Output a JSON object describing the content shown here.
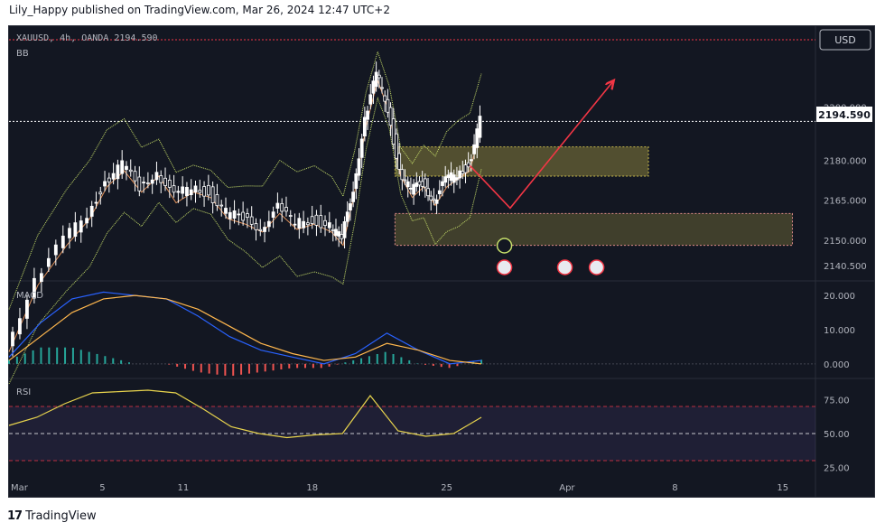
{
  "header": {
    "text": "Lily_Happy published on TradingView.com, Mar 26, 2024 12:47 UTC+2"
  },
  "footer": {
    "brand": "TradingView",
    "logo": "17"
  },
  "colors": {
    "background": "#131722",
    "price_line": "#ffffff",
    "bands": "#c8e06a",
    "macd_line": "#2962ff",
    "signal_line": "#ffb74d",
    "hist_up": "#26a69a",
    "hist_down": "#ef5350",
    "rsi_line": "#e8d44d",
    "rsi_band": "#7e57c2",
    "zone_supply": "#c8b84a",
    "zone_demand": "#e08a8a",
    "arrow": "#f23645"
  },
  "chart_data": [
    {
      "type": "candlestick",
      "pane": "price",
      "symbol_line": "XAUUSD, 4h, OANDA  2194.590",
      "indicator_label": "BB",
      "currency_button": "USD",
      "current_price": "2194.590",
      "y_ticks": [
        "2200.000",
        "2180.000",
        "2165.000",
        "2150.000",
        "2140.500"
      ],
      "y_tick_values": [
        2200,
        2180,
        2165,
        2150,
        2140.5
      ],
      "ylim": [
        2135,
        2230
      ],
      "x_ticks": [
        "Mar",
        "5",
        "11",
        "18",
        "25",
        "Apr",
        "8",
        "15"
      ],
      "price_path": [
        [
          0,
          2110
        ],
        [
          10,
          2135
        ],
        [
          20,
          2150
        ],
        [
          28,
          2160
        ],
        [
          34,
          2172
        ],
        [
          40,
          2178
        ],
        [
          46,
          2170
        ],
        [
          52,
          2176
        ],
        [
          58,
          2166
        ],
        [
          64,
          2170
        ],
        [
          70,
          2168
        ],
        [
          76,
          2160
        ],
        [
          82,
          2158
        ],
        [
          88,
          2155
        ],
        [
          94,
          2162
        ],
        [
          100,
          2156
        ],
        [
          106,
          2158
        ],
        [
          112,
          2155
        ],
        [
          116,
          2150
        ],
        [
          120,
          2170
        ],
        [
          124,
          2195
        ],
        [
          128,
          2212
        ],
        [
          132,
          2200
        ],
        [
          136,
          2176
        ],
        [
          140,
          2168
        ],
        [
          144,
          2172
        ],
        [
          148,
          2165
        ],
        [
          152,
          2172
        ],
        [
          156,
          2175
        ],
        [
          160,
          2178
        ],
        [
          164,
          2194.59
        ]
      ],
      "zones": [
        {
          "name": "upper-zone",
          "top": 2185,
          "bottom": 2174,
          "x_start": 134,
          "x_end": 222
        },
        {
          "name": "lower-zone",
          "top": 2160,
          "bottom": 2148,
          "x_start": 134,
          "x_end": 272
        }
      ],
      "projection": [
        [
          160,
          2178
        ],
        [
          174,
          2162
        ],
        [
          210,
          2210
        ]
      ]
    },
    {
      "type": "line",
      "pane": "macd",
      "indicator_label": "MACD",
      "y_ticks": [
        "20.000",
        "10.000",
        "0.000"
      ],
      "y_tick_values": [
        20,
        10,
        0
      ],
      "ylim": [
        -4,
        24
      ],
      "series": [
        {
          "values": [
            2,
            12,
            19,
            21,
            20,
            19,
            14,
            8,
            4,
            2,
            0,
            3,
            9,
            4,
            0,
            1
          ]
        },
        {
          "values": [
            1,
            8,
            15,
            19,
            20,
            19,
            16,
            11,
            6,
            3,
            1,
            2,
            6,
            4,
            1,
            0
          ]
        }
      ]
    },
    {
      "type": "line",
      "pane": "rsi",
      "indicator_label": "RSI",
      "y_ticks": [
        "75.00",
        "50.00",
        "25.00"
      ],
      "y_tick_values": [
        75,
        50,
        25
      ],
      "ylim": [
        20,
        90
      ],
      "values": [
        56,
        62,
        72,
        80,
        81,
        82,
        80,
        68,
        55,
        50,
        47,
        49,
        50,
        78,
        52,
        48,
        50,
        62
      ]
    }
  ]
}
